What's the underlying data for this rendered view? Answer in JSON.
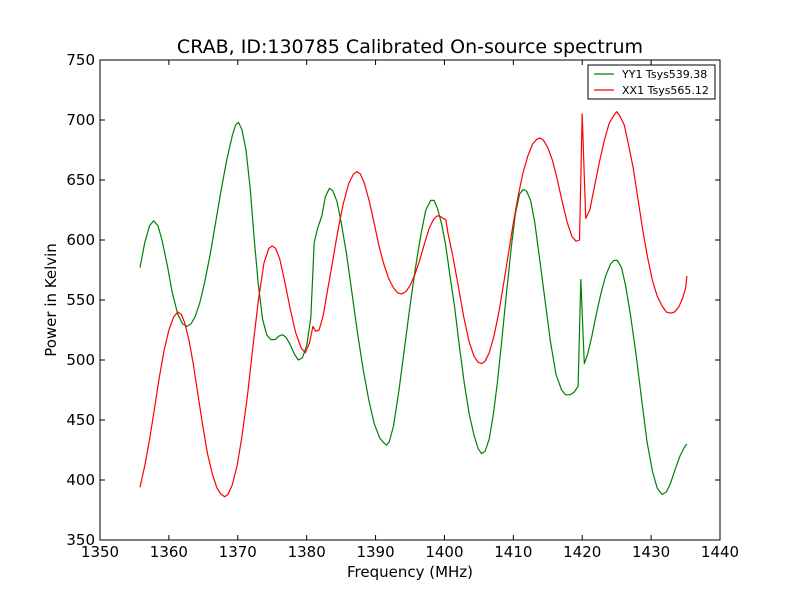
{
  "chart_data": {
    "type": "line",
    "title": "CRAB, ID:130785 Calibrated On-source spectrum",
    "xlabel": "Frequency (MHz)",
    "ylabel": "Power in Kelvin",
    "xlim": [
      1350,
      1440
    ],
    "ylim": [
      350,
      750
    ],
    "xticks": [
      1350,
      1360,
      1370,
      1380,
      1390,
      1400,
      1410,
      1420,
      1430,
      1440
    ],
    "yticks": [
      350,
      400,
      450,
      500,
      550,
      600,
      650,
      700,
      750
    ],
    "grid": false,
    "legend_position": "top-right",
    "series": [
      {
        "name": "YY1 Tsys539.38",
        "color": "#008000",
        "points": [
          [
            1355.8,
            577
          ],
          [
            1356.5,
            598
          ],
          [
            1357.2,
            612
          ],
          [
            1357.8,
            616
          ],
          [
            1358.4,
            612
          ],
          [
            1359.0,
            600
          ],
          [
            1359.8,
            578
          ],
          [
            1360.5,
            556
          ],
          [
            1361.3,
            538
          ],
          [
            1362.0,
            530
          ],
          [
            1362.6,
            528
          ],
          [
            1363.2,
            530
          ],
          [
            1363.8,
            536
          ],
          [
            1364.5,
            548
          ],
          [
            1365.2,
            565
          ],
          [
            1366.0,
            588
          ],
          [
            1366.8,
            615
          ],
          [
            1367.6,
            642
          ],
          [
            1368.4,
            667
          ],
          [
            1369.2,
            687
          ],
          [
            1369.7,
            696
          ],
          [
            1370.1,
            698
          ],
          [
            1370.6,
            692
          ],
          [
            1371.2,
            675
          ],
          [
            1371.8,
            643
          ],
          [
            1372.4,
            600
          ],
          [
            1373.0,
            562
          ],
          [
            1373.6,
            534
          ],
          [
            1374.2,
            521
          ],
          [
            1374.8,
            517
          ],
          [
            1375.4,
            517
          ],
          [
            1376.0,
            520
          ],
          [
            1376.5,
            521
          ],
          [
            1377.0,
            519
          ],
          [
            1377.6,
            513
          ],
          [
            1378.2,
            505
          ],
          [
            1378.8,
            500
          ],
          [
            1379.4,
            502
          ],
          [
            1380.0,
            512
          ],
          [
            1380.6,
            535
          ],
          [
            1381.1,
            598
          ],
          [
            1381.6,
            610
          ],
          [
            1382.2,
            620
          ],
          [
            1382.7,
            636
          ],
          [
            1383.3,
            643
          ],
          [
            1383.8,
            641
          ],
          [
            1384.4,
            632
          ],
          [
            1385.0,
            615
          ],
          [
            1385.8,
            588
          ],
          [
            1386.6,
            555
          ],
          [
            1387.4,
            522
          ],
          [
            1388.2,
            492
          ],
          [
            1389.0,
            467
          ],
          [
            1389.8,
            447
          ],
          [
            1390.6,
            435
          ],
          [
            1391.2,
            431
          ],
          [
            1391.6,
            429
          ],
          [
            1392.0,
            432
          ],
          [
            1392.6,
            445
          ],
          [
            1393.4,
            475
          ],
          [
            1394.2,
            510
          ],
          [
            1395.0,
            545
          ],
          [
            1395.8,
            577
          ],
          [
            1396.6,
            605
          ],
          [
            1397.3,
            625
          ],
          [
            1398.0,
            633
          ],
          [
            1398.5,
            633
          ],
          [
            1399.0,
            626
          ],
          [
            1399.6,
            613
          ],
          [
            1400.2,
            595
          ],
          [
            1400.8,
            570
          ],
          [
            1401.5,
            543
          ],
          [
            1402.2,
            510
          ],
          [
            1402.9,
            480
          ],
          [
            1403.6,
            455
          ],
          [
            1404.3,
            437
          ],
          [
            1404.9,
            426
          ],
          [
            1405.4,
            422
          ],
          [
            1405.9,
            424
          ],
          [
            1406.5,
            434
          ],
          [
            1407.1,
            455
          ],
          [
            1407.7,
            482
          ],
          [
            1408.3,
            515
          ],
          [
            1409.0,
            555
          ],
          [
            1409.7,
            594
          ],
          [
            1410.3,
            622
          ],
          [
            1410.9,
            638
          ],
          [
            1411.4,
            642
          ],
          [
            1411.9,
            641
          ],
          [
            1412.5,
            633
          ],
          [
            1413.1,
            615
          ],
          [
            1413.8,
            585
          ],
          [
            1414.6,
            550
          ],
          [
            1415.4,
            515
          ],
          [
            1416.2,
            488
          ],
          [
            1417.0,
            475
          ],
          [
            1417.6,
            471
          ],
          [
            1418.2,
            471
          ],
          [
            1418.8,
            473
          ],
          [
            1419.4,
            478
          ],
          [
            1419.8,
            567
          ],
          [
            1420.3,
            497
          ],
          [
            1420.8,
            505
          ],
          [
            1421.4,
            520
          ],
          [
            1422.0,
            537
          ],
          [
            1422.7,
            555
          ],
          [
            1423.4,
            570
          ],
          [
            1424.1,
            580
          ],
          [
            1424.6,
            583
          ],
          [
            1425.1,
            583
          ],
          [
            1425.7,
            577
          ],
          [
            1426.3,
            562
          ],
          [
            1427.0,
            538
          ],
          [
            1427.8,
            505
          ],
          [
            1428.6,
            468
          ],
          [
            1429.4,
            432
          ],
          [
            1430.2,
            407
          ],
          [
            1430.9,
            393
          ],
          [
            1431.6,
            388
          ],
          [
            1432.2,
            390
          ],
          [
            1432.8,
            397
          ],
          [
            1433.5,
            409
          ],
          [
            1434.2,
            420
          ],
          [
            1434.8,
            427
          ],
          [
            1435.2,
            430
          ]
        ]
      },
      {
        "name": "XX1 Tsys565.12",
        "color": "#ff0000",
        "points": [
          [
            1355.8,
            394
          ],
          [
            1356.5,
            412
          ],
          [
            1357.2,
            434
          ],
          [
            1357.9,
            459
          ],
          [
            1358.6,
            485
          ],
          [
            1359.3,
            508
          ],
          [
            1360.0,
            525
          ],
          [
            1360.7,
            536
          ],
          [
            1361.3,
            540
          ],
          [
            1361.8,
            538
          ],
          [
            1362.3,
            531
          ],
          [
            1362.9,
            517
          ],
          [
            1363.5,
            498
          ],
          [
            1364.2,
            472
          ],
          [
            1364.9,
            446
          ],
          [
            1365.6,
            422
          ],
          [
            1366.3,
            405
          ],
          [
            1367.0,
            393
          ],
          [
            1367.6,
            388
          ],
          [
            1368.1,
            386
          ],
          [
            1368.6,
            388
          ],
          [
            1369.2,
            396
          ],
          [
            1369.9,
            412
          ],
          [
            1370.6,
            436
          ],
          [
            1371.4,
            470
          ],
          [
            1372.2,
            511
          ],
          [
            1373.0,
            550
          ],
          [
            1373.8,
            581
          ],
          [
            1374.5,
            593
          ],
          [
            1375.0,
            595
          ],
          [
            1375.5,
            593
          ],
          [
            1376.1,
            584
          ],
          [
            1376.8,
            566
          ],
          [
            1377.6,
            543
          ],
          [
            1378.4,
            523
          ],
          [
            1379.2,
            510
          ],
          [
            1379.8,
            506
          ],
          [
            1380.4,
            514
          ],
          [
            1380.9,
            528
          ],
          [
            1381.3,
            524
          ],
          [
            1381.8,
            525
          ],
          [
            1382.4,
            537
          ],
          [
            1383.0,
            557
          ],
          [
            1383.7,
            580
          ],
          [
            1384.5,
            607
          ],
          [
            1385.3,
            630
          ],
          [
            1386.1,
            647
          ],
          [
            1386.8,
            655
          ],
          [
            1387.3,
            657
          ],
          [
            1387.8,
            655
          ],
          [
            1388.4,
            647
          ],
          [
            1389.1,
            632
          ],
          [
            1389.8,
            614
          ],
          [
            1390.5,
            595
          ],
          [
            1391.2,
            580
          ],
          [
            1391.9,
            568
          ],
          [
            1392.6,
            560
          ],
          [
            1393.2,
            556
          ],
          [
            1393.8,
            555
          ],
          [
            1394.4,
            557
          ],
          [
            1395.0,
            562
          ],
          [
            1395.7,
            571
          ],
          [
            1396.4,
            583
          ],
          [
            1397.1,
            597
          ],
          [
            1397.8,
            610
          ],
          [
            1398.4,
            617
          ],
          [
            1398.9,
            620
          ],
          [
            1399.3,
            620
          ],
          [
            1399.8,
            618
          ],
          [
            1400.2,
            617
          ],
          [
            1400.5,
            606
          ],
          [
            1401.2,
            587
          ],
          [
            1402.0,
            562
          ],
          [
            1402.8,
            536
          ],
          [
            1403.6,
            515
          ],
          [
            1404.3,
            503
          ],
          [
            1404.9,
            498
          ],
          [
            1405.4,
            497
          ],
          [
            1405.9,
            499
          ],
          [
            1406.5,
            506
          ],
          [
            1407.2,
            520
          ],
          [
            1407.9,
            540
          ],
          [
            1408.6,
            564
          ],
          [
            1409.3,
            589
          ],
          [
            1410.0,
            614
          ],
          [
            1410.7,
            637
          ],
          [
            1411.4,
            656
          ],
          [
            1412.1,
            670
          ],
          [
            1412.8,
            680
          ],
          [
            1413.4,
            684
          ],
          [
            1413.9,
            685
          ],
          [
            1414.4,
            683
          ],
          [
            1415.0,
            677
          ],
          [
            1415.7,
            666
          ],
          [
            1416.4,
            650
          ],
          [
            1417.1,
            632
          ],
          [
            1417.8,
            615
          ],
          [
            1418.5,
            603
          ],
          [
            1419.1,
            599
          ],
          [
            1419.6,
            600
          ],
          [
            1420.0,
            705
          ],
          [
            1420.5,
            618
          ],
          [
            1421.1,
            625
          ],
          [
            1421.8,
            645
          ],
          [
            1422.5,
            665
          ],
          [
            1423.2,
            683
          ],
          [
            1423.9,
            697
          ],
          [
            1424.5,
            703
          ],
          [
            1425.0,
            707
          ],
          [
            1425.5,
            703
          ],
          [
            1426.1,
            696
          ],
          [
            1426.7,
            680
          ],
          [
            1427.4,
            660
          ],
          [
            1428.1,
            634
          ],
          [
            1428.8,
            608
          ],
          [
            1429.5,
            585
          ],
          [
            1430.2,
            566
          ],
          [
            1430.9,
            553
          ],
          [
            1431.6,
            545
          ],
          [
            1432.2,
            540
          ],
          [
            1432.8,
            539
          ],
          [
            1433.4,
            540
          ],
          [
            1434.0,
            544
          ],
          [
            1434.6,
            552
          ],
          [
            1435.0,
            560
          ],
          [
            1435.2,
            570
          ]
        ]
      }
    ]
  }
}
